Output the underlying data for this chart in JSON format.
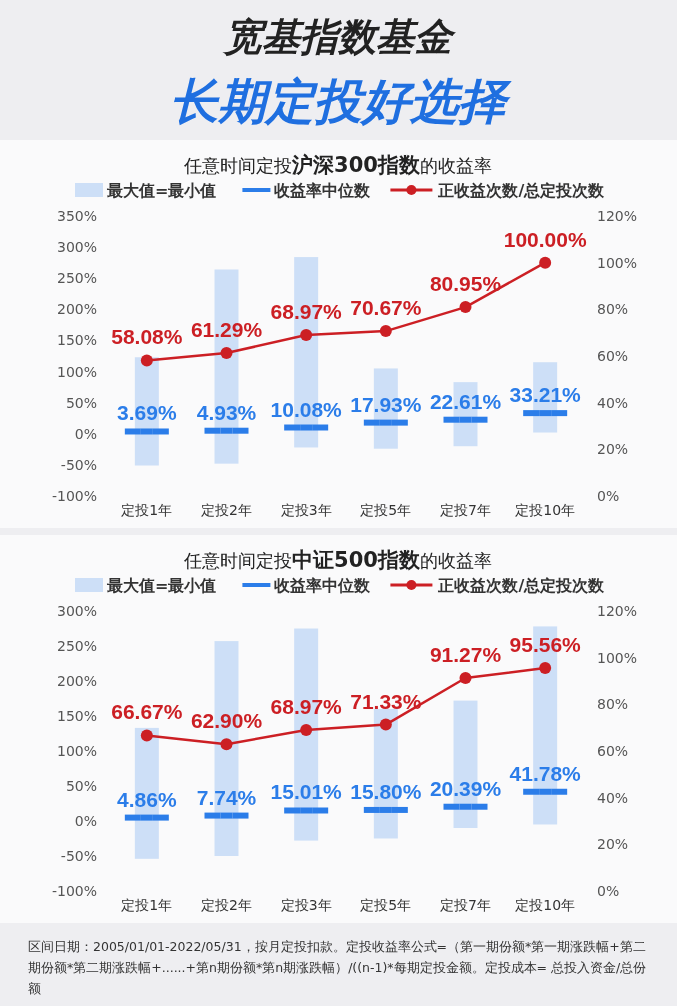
{
  "chart_data": [
    {
      "type": "bar",
      "title": "任意时间定投**沪深300指数**的收益率",
      "annotations": [
        "宽基指数基金",
        "长期定投好选择"
      ],
      "categories": [
        "定投1年",
        "定投2年",
        "定投3年",
        "定投5年",
        "定投7年",
        "定投10年"
      ],
      "series": [
        {
          "name": "最大值=最小值",
          "type": "bar",
          "color": "#cddff7",
          "base": [
            -51,
            -48,
            -22,
            -24,
            -20,
            2
          ],
          "values": [
            174,
            312,
            306,
            129,
            103,
            113
          ]
        },
        {
          "name": "收益率中位数",
          "type": "scatter",
          "color": "#2b7de9",
          "values": [
            3.69,
            4.93,
            10.08,
            17.93,
            22.61,
            33.21
          ],
          "value_labels": [
            "3.69%",
            "4.93%",
            "10.08%",
            "17.93%",
            "22.61%",
            "33.21%"
          ]
        },
        {
          "name": "正收益次数/总定投次数",
          "type": "line",
          "axis": "y2",
          "marker": "circle",
          "color": "#cc1f24",
          "values": [
            58.08,
            61.29,
            68.97,
            70.67,
            80.95,
            100.0
          ],
          "value_labels": [
            "58.08%",
            "61.29%",
            "68.97%",
            "70.67%",
            "80.95%",
            "100.00%"
          ]
        }
      ],
      "ylim": [
        -100,
        350
      ],
      "yticks": [
        {
          "value": -100,
          "label": "-100%"
        },
        {
          "value": -50,
          "label": "-50%"
        },
        {
          "value": 0,
          "label": "0%"
        },
        {
          "value": 50,
          "label": "50%"
        },
        {
          "value": 100,
          "label": "100%"
        },
        {
          "value": 150,
          "label": "150%"
        },
        {
          "value": 200,
          "label": "200%"
        },
        {
          "value": 250,
          "label": "250%"
        },
        {
          "value": 300,
          "label": "300%"
        },
        {
          "value": 350,
          "label": "350%"
        }
      ],
      "y2lim": [
        0,
        120
      ],
      "y2ticks": [
        {
          "value": 0,
          "label": "0%"
        },
        {
          "value": 20,
          "label": "20%"
        },
        {
          "value": 40,
          "label": "40%"
        },
        {
          "value": 60,
          "label": "60%"
        },
        {
          "value": 80,
          "label": "80%"
        },
        {
          "value": 100,
          "label": "100%"
        },
        {
          "value": 120,
          "label": "120%"
        }
      ],
      "legend": "top",
      "grid": false
    },
    {
      "type": "bar",
      "title": "任意时间定投**中证500指数**的收益率",
      "annotations": [
        "区间日期：2005/01/01-2022/05/31，按月定投扣款。定投收益率公式=（第一期份额*第一期涨跌幅+第二期份额*第二期涨跌幅+......+第n期份额*第n期涨跌幅）/((n-1)*每期定投金额。定投成本= 总投入资金/总份额"
      ],
      "categories": [
        "定投1年",
        "定投2年",
        "定投3年",
        "定投5年",
        "定投7年",
        "定投10年"
      ],
      "series": [
        {
          "name": "最大值=最小值",
          "type": "bar",
          "color": "#cddff7",
          "base": [
            -54,
            -50,
            -28,
            -25,
            -10,
            -5
          ],
          "values": [
            187,
            307,
            303,
            185,
            182,
            283
          ]
        },
        {
          "name": "收益率中位数",
          "type": "scatter",
          "color": "#2b7de9",
          "values": [
            4.86,
            7.74,
            15.01,
            15.8,
            20.39,
            41.78
          ],
          "value_labels": [
            "4.86%",
            "7.74%",
            "15.01%",
            "15.80%",
            "20.39%",
            "41.78%"
          ]
        },
        {
          "name": "正收益次数/总定投次数",
          "type": "line",
          "axis": "y2",
          "marker": "circle",
          "color": "#cc1f24",
          "values": [
            66.67,
            62.9,
            68.97,
            71.33,
            91.27,
            95.56
          ],
          "value_labels": [
            "66.67%",
            "62.90%",
            "68.97%",
            "71.33%",
            "91.27%",
            "95.56%"
          ]
        }
      ],
      "ylim": [
        -100,
        300
      ],
      "yticks": [
        {
          "value": -100,
          "label": "-100%"
        },
        {
          "value": -50,
          "label": "-50%"
        },
        {
          "value": 0,
          "label": "0%"
        },
        {
          "value": 50,
          "label": "50%"
        },
        {
          "value": 100,
          "label": "100%"
        },
        {
          "value": 150,
          "label": "150%"
        },
        {
          "value": 200,
          "label": "200%"
        },
        {
          "value": 250,
          "label": "250%"
        },
        {
          "value": 300,
          "label": "300%"
        }
      ],
      "y2lim": [
        0,
        120
      ],
      "y2ticks": [
        {
          "value": 0,
          "label": "0%"
        },
        {
          "value": 20,
          "label": "20%"
        },
        {
          "value": 40,
          "label": "40%"
        },
        {
          "value": 60,
          "label": "60%"
        },
        {
          "value": 80,
          "label": "80%"
        },
        {
          "value": 100,
          "label": "100%"
        },
        {
          "value": 120,
          "label": "120%"
        }
      ],
      "legend": "top",
      "grid": false
    }
  ]
}
